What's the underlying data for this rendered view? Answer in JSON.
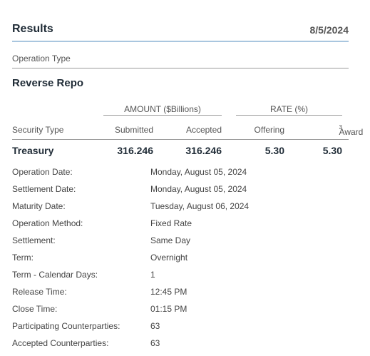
{
  "results": {
    "title": "Results",
    "date": "8/5/2024"
  },
  "operation_type_label": "Operation Type",
  "operation_name": "Reverse Repo",
  "table": {
    "group_amount": "AMOUNT ($Billions)",
    "group_rate": "RATE (%)",
    "col_security_type": "Security Type",
    "col_submitted": "Submitted",
    "col_accepted": "Accepted",
    "col_offering": "Offering",
    "col_award": "Award",
    "col_award_footnote": "3",
    "row": {
      "security_type": "Treasury",
      "submitted": "316.246",
      "accepted": "316.246",
      "offering": "5.30",
      "award": "5.30"
    }
  },
  "details": [
    {
      "label": "Operation Date:",
      "value": "Monday, August 05, 2024"
    },
    {
      "label": "Settlement Date:",
      "value": "Monday, August 05, 2024"
    },
    {
      "label": "Maturity Date:",
      "value": "Tuesday, August 06, 2024"
    },
    {
      "label": "Operation Method:",
      "value": "Fixed Rate"
    },
    {
      "label": "Settlement:",
      "value": "Same Day"
    },
    {
      "label": "Term:",
      "value": "Overnight"
    },
    {
      "label": "Term - Calendar Days:",
      "value": "1"
    },
    {
      "label": "Release Time:",
      "value": "12:45 PM"
    },
    {
      "label": "Close Time:",
      "value": "01:15 PM"
    },
    {
      "label": "Participating Counterparties:",
      "value": "63"
    },
    {
      "label": "Accepted Counterparties:",
      "value": "63"
    }
  ]
}
